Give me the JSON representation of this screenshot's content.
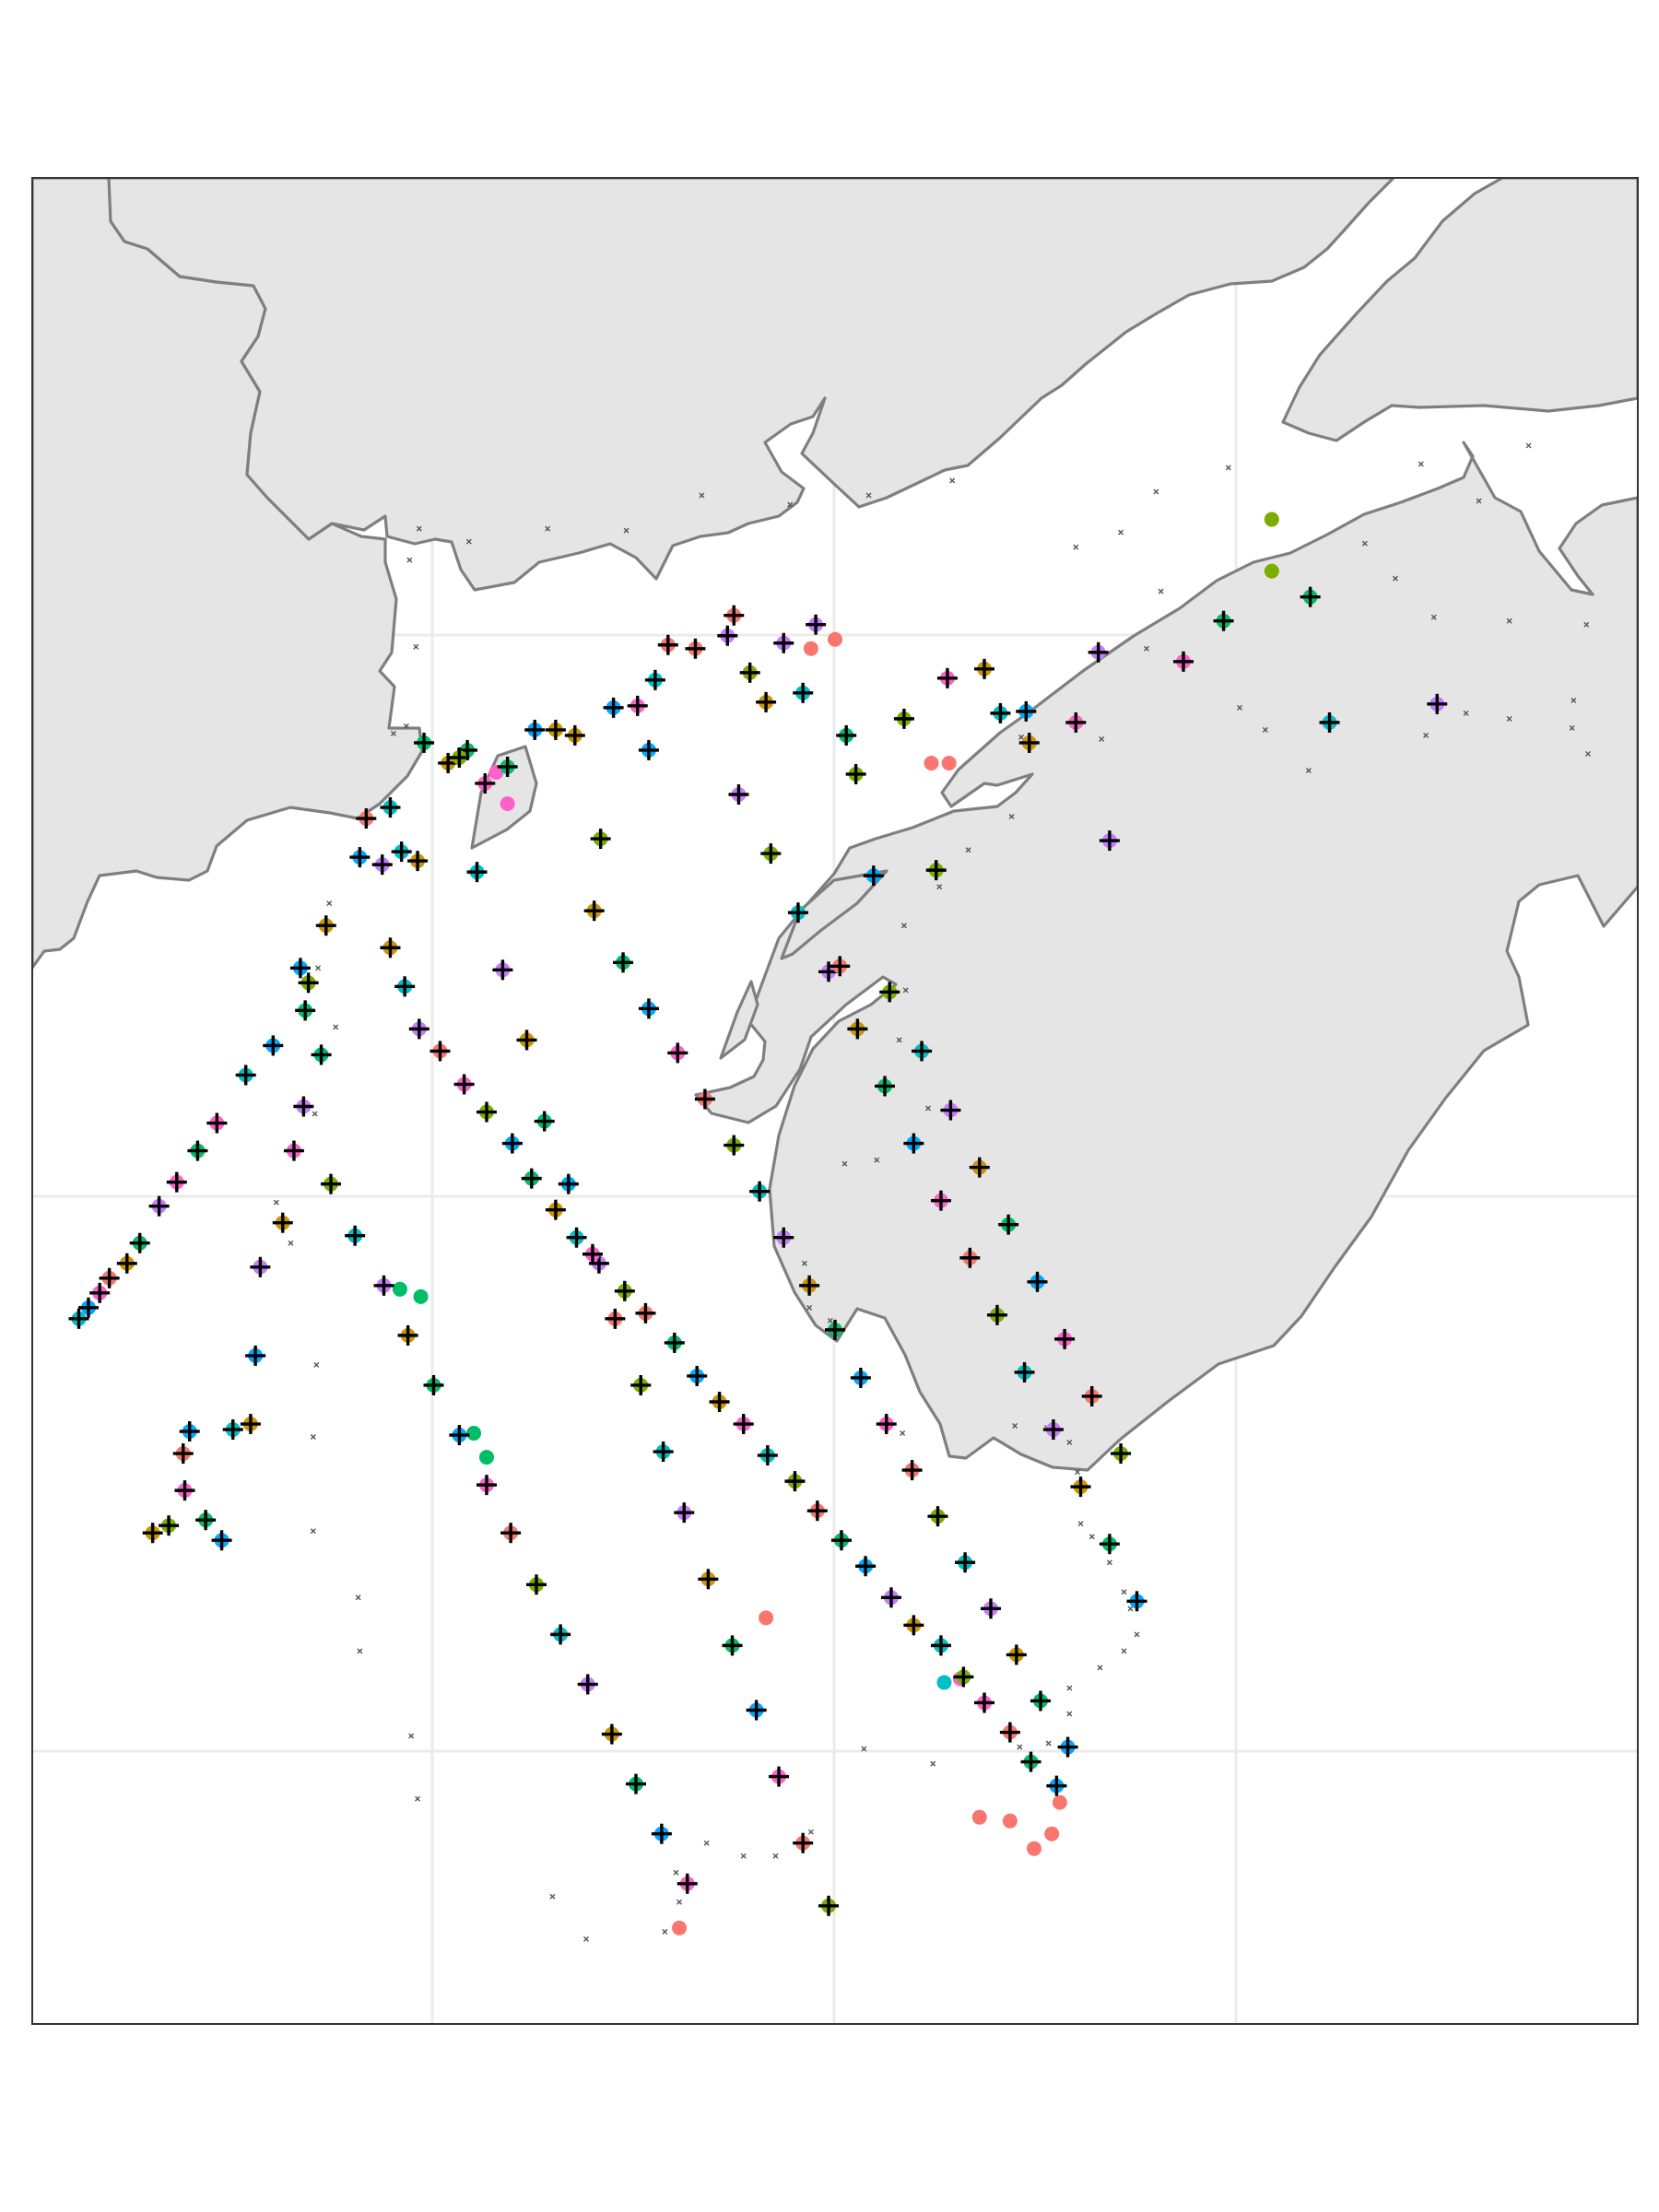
{
  "colors": {
    "background": "#ffffff",
    "land": "#e5e5e5",
    "coastline": "#7f7f7f",
    "grid": "#ebebeb",
    "frame": "#333333",
    "plus": "#000000",
    "palette": [
      "#f8766d",
      "#cd9600",
      "#7cae00",
      "#00be67",
      "#00bfc4",
      "#00a9ff",
      "#c77cff",
      "#ff61cc"
    ]
  },
  "map": {
    "extent": {
      "xmin": 0,
      "xmax": 100,
      "ymin": 0,
      "ymax": 100
    },
    "gridlines_x": [
      24.3,
      48.7,
      73.0
    ],
    "gridlines_y": [
      74.8,
      44.4,
      14.4
    ],
    "legend": "none",
    "symbols": [
      "dot",
      "plus",
      "small-x"
    ]
  },
  "chart_data": {
    "type": "scatter",
    "description_of_marks": "survey stations",
    "colored_stations": [
      [
        87.5,
        71.5,
        6
      ],
      [
        80.8,
        70.5,
        4
      ],
      [
        79.6,
        77.3,
        3
      ],
      [
        74.2,
        76.0,
        3
      ],
      [
        71.7,
        73.8,
        7
      ],
      [
        67.1,
        64.1,
        6
      ],
      [
        66.4,
        74.3,
        6
      ],
      [
        65.0,
        70.5,
        7
      ],
      [
        62.1,
        69.4,
        1
      ],
      [
        61.9,
        71.1,
        5
      ],
      [
        60.3,
        71.0,
        4
      ],
      [
        59.3,
        73.4,
        1
      ],
      [
        57.0,
        72.9,
        7
      ],
      [
        56.3,
        62.5,
        2
      ],
      [
        54.3,
        70.7,
        2
      ],
      [
        52.4,
        62.2,
        5
      ],
      [
        51.3,
        67.7,
        2
      ],
      [
        50.7,
        69.8,
        3
      ],
      [
        48.8,
        75.8,
        6
      ],
      [
        48.0,
        72.1,
        4
      ],
      [
        46.8,
        74.8,
        6
      ],
      [
        45.7,
        71.6,
        1
      ],
      [
        44.7,
        73.2,
        2
      ],
      [
        43.7,
        76.3,
        0
      ],
      [
        43.3,
        75.2,
        6
      ],
      [
        41.3,
        74.5,
        0
      ],
      [
        39.6,
        74.7,
        0
      ],
      [
        38.8,
        72.8,
        4
      ],
      [
        38.4,
        69.0,
        5
      ],
      [
        37.7,
        71.4,
        7
      ],
      [
        36.2,
        71.3,
        5
      ],
      [
        35.4,
        64.2,
        2
      ],
      [
        33.8,
        69.8,
        1
      ],
      [
        32.6,
        70.1,
        1
      ],
      [
        31.3,
        70.1,
        5
      ],
      [
        29.6,
        68.1,
        3
      ],
      [
        28.2,
        67.2,
        7
      ],
      [
        27.1,
        69.0,
        3
      ],
      [
        25.9,
        68.3,
        1
      ],
      [
        24.4,
        69.4,
        3
      ],
      [
        24.0,
        63.0,
        1
      ],
      [
        23.0,
        63.5,
        4
      ],
      [
        22.3,
        65.9,
        4
      ],
      [
        21.8,
        62.8,
        6
      ],
      [
        20.4,
        63.2,
        5
      ],
      [
        20.8,
        65.3,
        0
      ],
      [
        18.3,
        59.5,
        1
      ],
      [
        17.2,
        56.4,
        2
      ],
      [
        17.0,
        54.9,
        3
      ],
      [
        16.7,
        57.2,
        5
      ],
      [
        16.9,
        49.7,
        6
      ],
      [
        16.3,
        47.3,
        7
      ],
      [
        15.6,
        43.4,
        1
      ],
      [
        14.2,
        41.0,
        6
      ],
      [
        13.9,
        36.2,
        5
      ],
      [
        13.6,
        32.5,
        1
      ],
      [
        12.5,
        32.2,
        4
      ],
      [
        11.8,
        26.2,
        5
      ],
      [
        10.8,
        27.3,
        3
      ],
      [
        9.8,
        32.1,
        5
      ],
      [
        9.5,
        28.9,
        7
      ],
      [
        8.5,
        27.0,
        2
      ],
      [
        7.5,
        26.6,
        1
      ],
      [
        9.4,
        30.9,
        0
      ],
      [
        18.0,
        52.5,
        3
      ],
      [
        15.0,
        53.0,
        5
      ],
      [
        13.3,
        51.4,
        4
      ],
      [
        11.5,
        48.8,
        7
      ],
      [
        10.3,
        47.3,
        3
      ],
      [
        9.0,
        45.6,
        7
      ],
      [
        7.9,
        44.3,
        6
      ],
      [
        6.7,
        42.3,
        3
      ],
      [
        5.9,
        41.2,
        1
      ],
      [
        4.8,
        40.4,
        0
      ],
      [
        4.2,
        39.6,
        7
      ],
      [
        3.5,
        38.8,
        5
      ],
      [
        2.9,
        38.2,
        4
      ],
      [
        22.3,
        58.3,
        1
      ],
      [
        23.2,
        56.2,
        4
      ],
      [
        24.1,
        53.9,
        6
      ],
      [
        25.4,
        52.7,
        0
      ],
      [
        26.9,
        50.9,
        7
      ],
      [
        28.3,
        49.4,
        2
      ],
      [
        29.9,
        47.7,
        5
      ],
      [
        31.1,
        45.8,
        3
      ],
      [
        32.6,
        44.1,
        1
      ],
      [
        33.9,
        42.6,
        4
      ],
      [
        35.3,
        41.2,
        6
      ],
      [
        36.9,
        39.7,
        2
      ],
      [
        38.2,
        38.5,
        0
      ],
      [
        40.0,
        36.9,
        3
      ],
      [
        41.4,
        35.1,
        5
      ],
      [
        42.8,
        33.7,
        1
      ],
      [
        44.3,
        32.5,
        7
      ],
      [
        45.8,
        30.8,
        4
      ],
      [
        47.5,
        29.4,
        2
      ],
      [
        48.9,
        27.8,
        0
      ],
      [
        50.4,
        26.2,
        3
      ],
      [
        51.9,
        24.8,
        5
      ],
      [
        53.5,
        23.1,
        6
      ],
      [
        54.9,
        21.6,
        1
      ],
      [
        56.6,
        20.5,
        4
      ],
      [
        58.0,
        18.8,
        2
      ],
      [
        59.3,
        17.4,
        7
      ],
      [
        60.9,
        15.8,
        0
      ],
      [
        62.2,
        14.2,
        3
      ],
      [
        63.8,
        12.9,
        5
      ],
      [
        18.6,
        45.5,
        2
      ],
      [
        20.1,
        42.7,
        4
      ],
      [
        21.9,
        40.0,
        6
      ],
      [
        23.4,
        37.3,
        1
      ],
      [
        25.0,
        34.6,
        3
      ],
      [
        26.6,
        31.9,
        5
      ],
      [
        28.3,
        29.2,
        7
      ],
      [
        29.8,
        26.6,
        0
      ],
      [
        31.4,
        23.8,
        2
      ],
      [
        32.9,
        21.1,
        4
      ],
      [
        34.6,
        18.4,
        6
      ],
      [
        36.1,
        15.7,
        1
      ],
      [
        37.6,
        13.0,
        3
      ],
      [
        39.2,
        10.3,
        5
      ],
      [
        40.8,
        7.6,
        7
      ],
      [
        26.6,
        68.6,
        2
      ],
      [
        27.7,
        62.4,
        4
      ],
      [
        29.3,
        57.1,
        6
      ],
      [
        30.8,
        53.3,
        1
      ],
      [
        31.9,
        48.9,
        3
      ],
      [
        33.4,
        45.5,
        5
      ],
      [
        34.9,
        41.7,
        7
      ],
      [
        36.3,
        38.2,
        0
      ],
      [
        37.9,
        34.6,
        2
      ],
      [
        39.3,
        31.0,
        4
      ],
      [
        40.6,
        27.7,
        6
      ],
      [
        42.1,
        24.1,
        1
      ],
      [
        43.6,
        20.5,
        3
      ],
      [
        45.1,
        17.0,
        5
      ],
      [
        46.5,
        13.4,
        7
      ],
      [
        48.0,
        9.8,
        0
      ],
      [
        49.6,
        6.4,
        2
      ],
      [
        35.0,
        60.3,
        1
      ],
      [
        36.8,
        57.5,
        3
      ],
      [
        38.4,
        55.0,
        5
      ],
      [
        40.2,
        52.6,
        7
      ],
      [
        41.9,
        50.1,
        0
      ],
      [
        43.7,
        47.6,
        2
      ],
      [
        45.3,
        45.1,
        4
      ],
      [
        46.8,
        42.6,
        6
      ],
      [
        48.4,
        40.0,
        1
      ],
      [
        50.0,
        37.6,
        3
      ],
      [
        51.6,
        35.0,
        5
      ],
      [
        53.2,
        32.5,
        7
      ],
      [
        54.8,
        30.0,
        0
      ],
      [
        56.4,
        27.5,
        2
      ],
      [
        58.1,
        25.0,
        4
      ],
      [
        59.7,
        22.5,
        6
      ],
      [
        61.3,
        20.0,
        1
      ],
      [
        62.8,
        17.5,
        3
      ],
      [
        64.5,
        15.0,
        5
      ],
      [
        44.0,
        66.6,
        6
      ],
      [
        46.0,
        63.4,
        2
      ],
      [
        47.7,
        60.2,
        4
      ],
      [
        49.6,
        57.0,
        6
      ],
      [
        51.4,
        53.9,
        1
      ],
      [
        53.1,
        50.8,
        3
      ],
      [
        54.9,
        47.7,
        5
      ],
      [
        56.6,
        44.6,
        7
      ],
      [
        58.4,
        41.5,
        0
      ],
      [
        60.1,
        38.4,
        2
      ],
      [
        61.8,
        35.3,
        4
      ],
      [
        63.6,
        32.2,
        6
      ],
      [
        65.3,
        29.1,
        1
      ],
      [
        67.1,
        26.0,
        3
      ],
      [
        68.8,
        22.9,
        5
      ],
      [
        50.3,
        57.3,
        0
      ],
      [
        53.4,
        55.9,
        2
      ],
      [
        55.4,
        52.7,
        4
      ],
      [
        57.2,
        49.5,
        6
      ],
      [
        59.0,
        46.4,
        1
      ],
      [
        60.8,
        43.3,
        3
      ],
      [
        62.6,
        40.2,
        5
      ],
      [
        64.3,
        37.1,
        7
      ],
      [
        66.0,
        34.0,
        0
      ],
      [
        67.8,
        30.9,
        2
      ]
    ],
    "colored_dots": [
      [
        48.5,
        74.5,
        0
      ],
      [
        50.0,
        75.0,
        0
      ],
      [
        56.0,
        68.3,
        0
      ],
      [
        57.1,
        68.3,
        0
      ],
      [
        77.2,
        81.5,
        2
      ],
      [
        77.2,
        78.7,
        2
      ],
      [
        28.9,
        67.8,
        7
      ],
      [
        29.6,
        66.1,
        7
      ],
      [
        22.9,
        39.8,
        3
      ],
      [
        24.2,
        39.4,
        3
      ],
      [
        27.5,
        32.0,
        3
      ],
      [
        28.3,
        30.7,
        3
      ],
      [
        62.4,
        9.5,
        0
      ],
      [
        63.5,
        10.3,
        0
      ],
      [
        64.0,
        12.0,
        0
      ],
      [
        40.3,
        5.2,
        0
      ],
      [
        59.0,
        11.2,
        0
      ],
      [
        60.9,
        11.0,
        0
      ],
      [
        45.7,
        22.0,
        0
      ],
      [
        56.8,
        18.5,
        4
      ],
      [
        57.8,
        18.7,
        7
      ]
    ],
    "small_x_marks": [
      [
        93.2,
        85.5
      ],
      [
        90.1,
        82.5
      ],
      [
        86.5,
        84.5
      ],
      [
        83.0,
        80.2
      ],
      [
        84.9,
        78.3
      ],
      [
        87.3,
        76.2
      ],
      [
        92.0,
        76.0
      ],
      [
        96.8,
        75.8
      ],
      [
        74.5,
        84.3
      ],
      [
        70.0,
        83.0
      ],
      [
        67.8,
        80.8
      ],
      [
        65.0,
        80.0
      ],
      [
        70.3,
        77.6
      ],
      [
        69.4,
        74.5
      ],
      [
        66.6,
        69.6
      ],
      [
        75.2,
        71.3
      ],
      [
        76.8,
        70.1
      ],
      [
        79.5,
        67.9
      ],
      [
        86.8,
        69.8
      ],
      [
        89.3,
        71.0
      ],
      [
        92.0,
        70.7
      ],
      [
        95.9,
        70.2
      ],
      [
        96.9,
        68.8
      ],
      [
        96.0,
        71.7
      ],
      [
        61.6,
        69.7
      ],
      [
        61.0,
        65.4
      ],
      [
        58.3,
        63.6
      ],
      [
        56.5,
        61.6
      ],
      [
        54.3,
        59.5
      ],
      [
        54.4,
        56.0
      ],
      [
        54.0,
        53.3
      ],
      [
        55.8,
        49.6
      ],
      [
        52.6,
        46.8
      ],
      [
        50.6,
        46.6
      ],
      [
        48.1,
        41.2
      ],
      [
        48.4,
        38.8
      ],
      [
        49.7,
        38.1
      ],
      [
        54.2,
        32.0
      ],
      [
        61.2,
        32.4
      ],
      [
        63.2,
        32.3
      ],
      [
        64.6,
        31.5
      ],
      [
        65.1,
        29.9
      ],
      [
        65.3,
        27.1
      ],
      [
        66.0,
        26.4
      ],
      [
        67.1,
        25.0
      ],
      [
        68.0,
        23.4
      ],
      [
        68.4,
        22.5
      ],
      [
        68.8,
        21.1
      ],
      [
        68.0,
        20.2
      ],
      [
        66.5,
        19.3
      ],
      [
        64.6,
        18.2
      ],
      [
        64.6,
        16.8
      ],
      [
        63.3,
        15.2
      ],
      [
        61.5,
        15.0
      ],
      [
        56.1,
        14.1
      ],
      [
        51.8,
        14.9
      ],
      [
        48.5,
        10.4
      ],
      [
        46.3,
        9.1
      ],
      [
        44.3,
        9.1
      ],
      [
        42.0,
        9.8
      ],
      [
        40.1,
        8.2
      ],
      [
        40.3,
        6.6
      ],
      [
        39.4,
        5.0
      ],
      [
        34.5,
        4.6
      ],
      [
        32.4,
        6.9
      ],
      [
        24.0,
        12.2
      ],
      [
        23.6,
        15.6
      ],
      [
        20.4,
        20.2
      ],
      [
        20.3,
        23.1
      ],
      [
        17.5,
        26.7
      ],
      [
        17.5,
        31.8
      ],
      [
        17.7,
        35.7
      ],
      [
        16.1,
        42.3
      ],
      [
        15.2,
        44.5
      ],
      [
        17.6,
        49.3
      ],
      [
        18.9,
        54.0
      ],
      [
        22.5,
        69.9
      ],
      [
        23.5,
        79.3
      ],
      [
        24.1,
        81.0
      ],
      [
        27.2,
        80.3
      ],
      [
        32.1,
        81.0
      ],
      [
        37.0,
        80.9
      ],
      [
        41.7,
        82.8
      ],
      [
        47.2,
        82.3
      ],
      [
        52.1,
        82.8
      ],
      [
        57.3,
        83.6
      ],
      [
        23.9,
        74.6
      ],
      [
        23.3,
        70.3
      ],
      [
        18.5,
        60.7
      ],
      [
        17.8,
        57.2
      ]
    ]
  }
}
